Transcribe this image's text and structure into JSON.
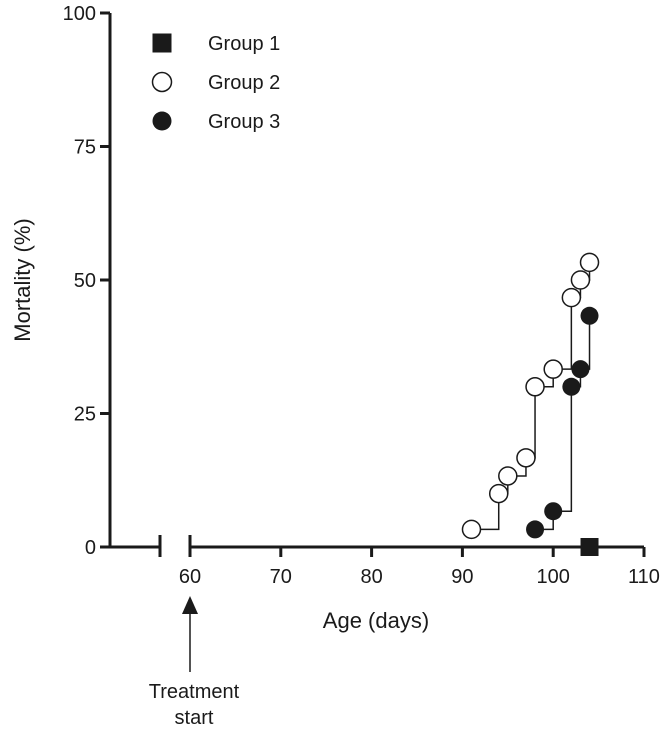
{
  "chart_data": {
    "type": "line",
    "subtype": "step",
    "title": "",
    "xlabel": "Age (days)",
    "ylabel": "Mortality (%)",
    "xlim": [
      50,
      110
    ],
    "ylim": [
      0,
      100
    ],
    "x_axis_break": true,
    "xticks": [
      60,
      70,
      80,
      90,
      100,
      110
    ],
    "yticks": [
      0,
      25,
      50,
      75,
      100
    ],
    "grid": false,
    "legend_position": "top-left",
    "series": [
      {
        "name": "Group 1",
        "marker": "square-filled",
        "color": "#1a1a1a",
        "x": [
          104
        ],
        "y": [
          0
        ]
      },
      {
        "name": "Group 2",
        "marker": "circle-open",
        "color": "#1a1a1a",
        "x": [
          91,
          94,
          95,
          97,
          98,
          100,
          102,
          103,
          104
        ],
        "y": [
          3.3,
          10,
          13.3,
          16.7,
          30,
          33.3,
          46.7,
          50,
          53.3
        ]
      },
      {
        "name": "Group 3",
        "marker": "circle-filled",
        "color": "#1a1a1a",
        "x": [
          98,
          100,
          102,
          103,
          104
        ],
        "y": [
          3.3,
          6.7,
          30,
          33.3,
          43.3
        ]
      }
    ],
    "annotations": [
      {
        "text_line1": "Treatment",
        "text_line2": "start",
        "x": 60,
        "arrow": "up"
      }
    ]
  }
}
